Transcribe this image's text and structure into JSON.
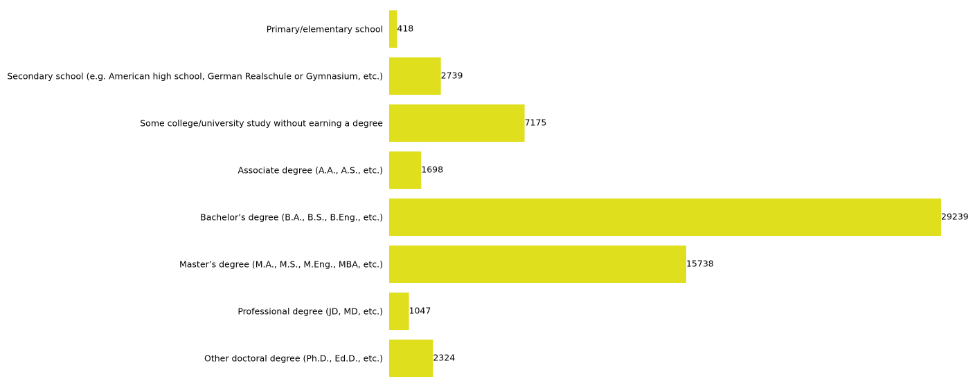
{
  "chart_data": {
    "type": "bar",
    "orientation": "horizontal",
    "categories": [
      "Primary/elementary school",
      "Secondary school (e.g. American high school, German Realschule or Gymnasium, etc.)",
      "Some college/university study without earning a degree",
      "Associate degree (A.A., A.S., etc.)",
      "Bachelor’s degree (B.A., B.S., B.Eng., etc.)",
      "Master’s degree (M.A., M.S., M.Eng., MBA, etc.)",
      "Professional degree (JD, MD, etc.)",
      "Other doctoral degree (Ph.D., Ed.D., etc.)"
    ],
    "values": [
      418,
      2739,
      7175,
      1698,
      29239,
      15738,
      1047,
      2324
    ],
    "data_labels": [
      "418",
      "2739",
      "7175",
      "1698",
      "29239",
      "15738",
      "1047",
      "2324"
    ],
    "xlim": [
      0,
      29239
    ],
    "grid": false,
    "axes_visible": false,
    "bar_color": "#dfdf1e"
  }
}
